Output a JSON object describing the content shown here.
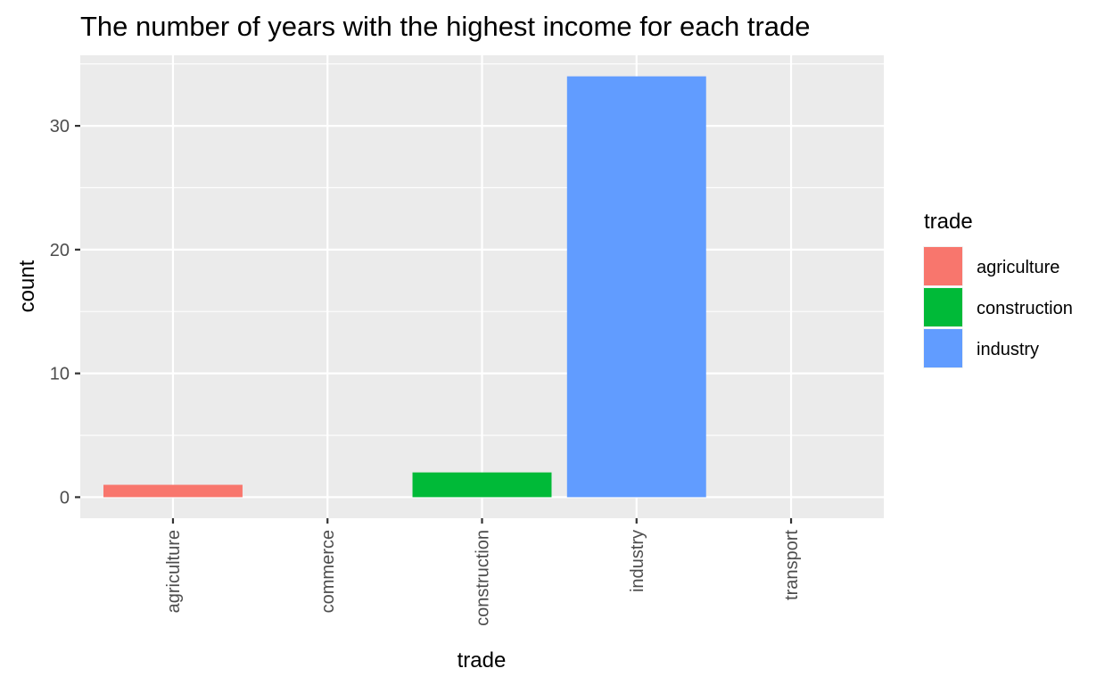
{
  "chart_data": {
    "type": "bar",
    "title": "The number of years with the highest income for each trade",
    "xlabel": "trade",
    "ylabel": "count",
    "categories": [
      "agriculture",
      "commerce",
      "construction",
      "industry",
      "transport"
    ],
    "values": [
      1,
      0,
      2,
      34,
      0
    ],
    "colors": [
      "#F8766D",
      null,
      "#00BA38",
      "#619CFF",
      null
    ],
    "yticks": [
      0,
      10,
      20,
      30
    ],
    "ylim": [
      -1.7,
      35.7
    ],
    "grid": true,
    "panel_background": "#EBEBEB",
    "x_tick_rotation": "vertical",
    "legend": {
      "title": "trade",
      "position": "right",
      "entries": [
        {
          "label": "agriculture",
          "color": "#F8766D"
        },
        {
          "label": "construction",
          "color": "#00BA38"
        },
        {
          "label": "industry",
          "color": "#619CFF"
        }
      ]
    }
  }
}
